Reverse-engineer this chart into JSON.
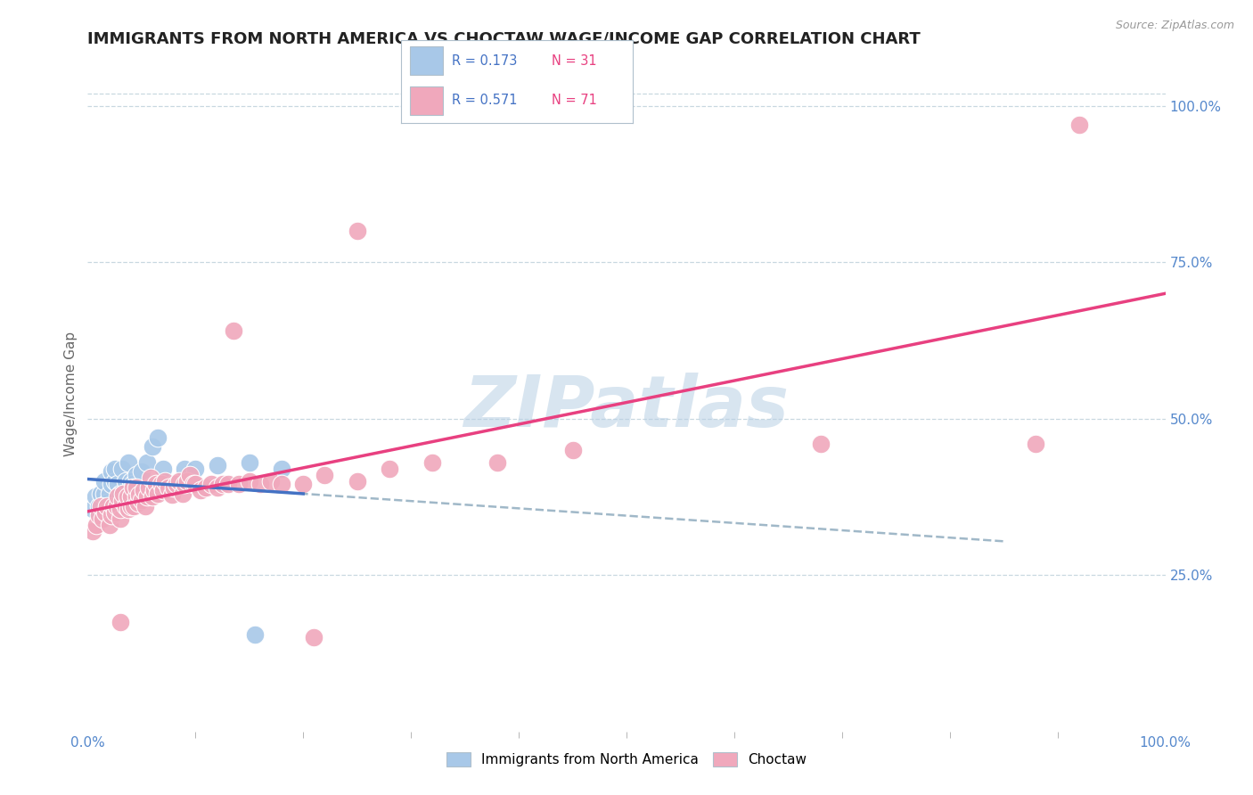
{
  "title": "IMMIGRANTS FROM NORTH AMERICA VS CHOCTAW WAGE/INCOME GAP CORRELATION CHART",
  "source_text": "Source: ZipAtlas.com",
  "ylabel": "Wage/Income Gap",
  "xlim": [
    0.0,
    1.0
  ],
  "ylim": [
    0.0,
    1.08
  ],
  "blue_R": 0.173,
  "blue_N": 31,
  "pink_R": 0.571,
  "pink_N": 71,
  "blue_color": "#a8c8e8",
  "pink_color": "#f0a8bc",
  "blue_line_color": "#4472c4",
  "pink_line_color": "#e84080",
  "dashed_line_color": "#a0b8c8",
  "watermark": "ZIPatlas",
  "background_color": "#ffffff",
  "grid_color": "#c8d8e0",
  "legend_border_color": "#b0c0cc",
  "blue_x": [
    0.005,
    0.007,
    0.01,
    0.012,
    0.015,
    0.015,
    0.018,
    0.02,
    0.022,
    0.022,
    0.025,
    0.025,
    0.028,
    0.03,
    0.032,
    0.035,
    0.038,
    0.04,
    0.042,
    0.045,
    0.05,
    0.055,
    0.06,
    0.065,
    0.07,
    0.08,
    0.09,
    0.1,
    0.12,
    0.15,
    0.18
  ],
  "blue_y": [
    0.355,
    0.375,
    0.36,
    0.38,
    0.38,
    0.4,
    0.365,
    0.38,
    0.395,
    0.415,
    0.4,
    0.42,
    0.395,
    0.38,
    0.42,
    0.4,
    0.43,
    0.4,
    0.395,
    0.41,
    0.415,
    0.43,
    0.455,
    0.47,
    0.42,
    0.395,
    0.42,
    0.42,
    0.425,
    0.43,
    0.42
  ],
  "blue_outlier_x": [
    0.155
  ],
  "blue_outlier_y": [
    0.155
  ],
  "pink_x": [
    0.005,
    0.008,
    0.01,
    0.012,
    0.014,
    0.016,
    0.018,
    0.02,
    0.022,
    0.024,
    0.025,
    0.027,
    0.028,
    0.03,
    0.03,
    0.032,
    0.033,
    0.035,
    0.037,
    0.038,
    0.04,
    0.04,
    0.042,
    0.043,
    0.045,
    0.045,
    0.047,
    0.048,
    0.05,
    0.052,
    0.053,
    0.055,
    0.057,
    0.058,
    0.06,
    0.062,
    0.063,
    0.065,
    0.068,
    0.07,
    0.072,
    0.075,
    0.078,
    0.08,
    0.082,
    0.085,
    0.088,
    0.09,
    0.092,
    0.095,
    0.098,
    0.1,
    0.105,
    0.11,
    0.115,
    0.12,
    0.125,
    0.13,
    0.14,
    0.15,
    0.16,
    0.17,
    0.18,
    0.2,
    0.22,
    0.25,
    0.28,
    0.32,
    0.38,
    0.88,
    0.92
  ],
  "pink_y": [
    0.32,
    0.33,
    0.345,
    0.36,
    0.34,
    0.35,
    0.36,
    0.33,
    0.345,
    0.36,
    0.35,
    0.36,
    0.375,
    0.34,
    0.355,
    0.368,
    0.38,
    0.36,
    0.375,
    0.355,
    0.36,
    0.375,
    0.39,
    0.36,
    0.375,
    0.39,
    0.365,
    0.378,
    0.37,
    0.385,
    0.36,
    0.375,
    0.39,
    0.405,
    0.375,
    0.385,
    0.395,
    0.38,
    0.395,
    0.385,
    0.4,
    0.39,
    0.378,
    0.39,
    0.395,
    0.4,
    0.38,
    0.395,
    0.4,
    0.41,
    0.395,
    0.395,
    0.385,
    0.39,
    0.395,
    0.39,
    0.395,
    0.395,
    0.395,
    0.4,
    0.395,
    0.4,
    0.395,
    0.395,
    0.41,
    0.4,
    0.42,
    0.43,
    0.43,
    0.46,
    0.97
  ],
  "pink_outlier1_x": [
    0.135
  ],
  "pink_outlier1_y": [
    0.64
  ],
  "pink_outlier2_x": [
    0.25
  ],
  "pink_outlier2_y": [
    0.8
  ],
  "pink_outlier3_x": [
    0.45
  ],
  "pink_outlier3_y": [
    0.45
  ],
  "pink_outlier4_x": [
    0.68
  ],
  "pink_outlier4_y": [
    0.46
  ],
  "pink_hr1_x": [
    0.03
  ],
  "pink_hr1_y": [
    0.175
  ],
  "pink_hr2_x": [
    0.21
  ],
  "pink_hr2_y": [
    0.15
  ]
}
